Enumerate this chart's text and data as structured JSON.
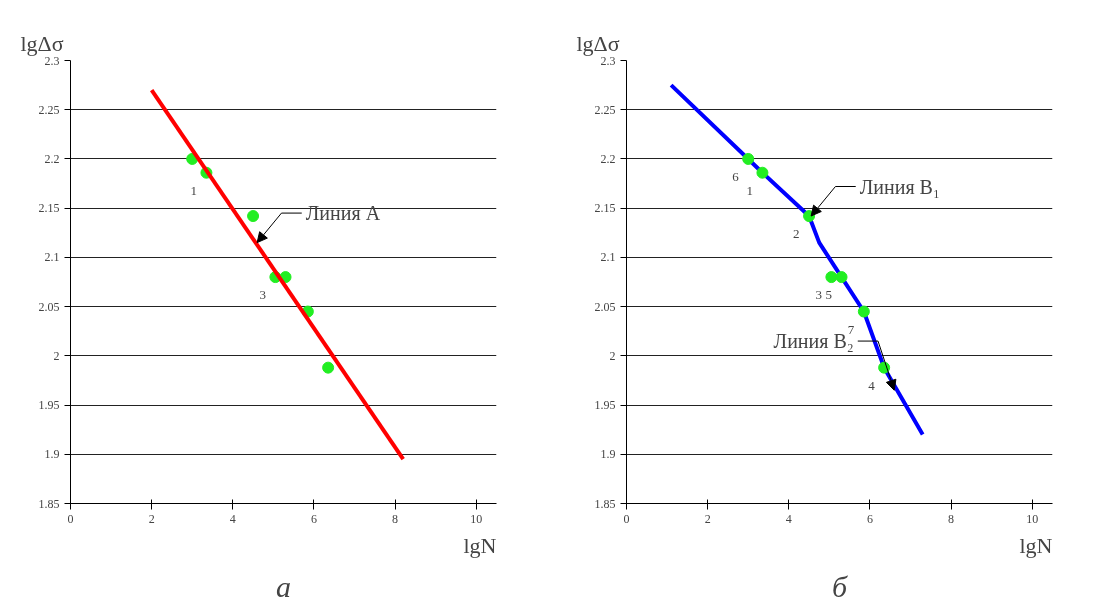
{
  "chart_data": [
    {
      "type": "scatter",
      "title": "а",
      "xlabel": "lgN",
      "ylabel": "lgΔσ",
      "xlim": [
        0,
        10.5
      ],
      "ylim": [
        1.85,
        2.3
      ],
      "xticks": [
        0,
        2,
        4,
        6,
        8,
        10
      ],
      "yticks": [
        1.85,
        1.9,
        1.95,
        2,
        2.05,
        2.1,
        2.15,
        2.2,
        2.25,
        2.3
      ],
      "grid": "y",
      "series": [
        {
          "color": "#22ee22",
          "x": [
            3.0,
            3.35,
            4.5,
            5.05,
            5.3,
            5.85,
            6.35
          ],
          "values": [
            2.2,
            2.186,
            2.142,
            2.08,
            2.08,
            2.045,
            1.988
          ]
        },
        {
          "type": "line",
          "color": "#ff0000",
          "x": [
            2.0,
            8.2
          ],
          "values": [
            2.27,
            1.895
          ]
        }
      ],
      "annotations": [
        {
          "text": "1",
          "x": 3.35,
          "y": 2.186
        },
        {
          "text": "3",
          "x": 5.05,
          "y": 2.08
        },
        {
          "text": "Линия A",
          "x": 4.6,
          "y": 2.115
        }
      ]
    },
    {
      "type": "scatter",
      "title": "б",
      "xlabel": "lgN",
      "ylabel": "lgΔσ",
      "xlim": [
        0,
        10.5
      ],
      "ylim": [
        1.85,
        2.3
      ],
      "xticks": [
        0,
        2,
        4,
        6,
        8,
        10
      ],
      "yticks": [
        1.85,
        1.9,
        1.95,
        2,
        2.05,
        2.1,
        2.15,
        2.2,
        2.25,
        2.3
      ],
      "grid": "y",
      "series": [
        {
          "type": "line",
          "color": "#0000ff",
          "x": [
            1.1,
            3.0,
            3.35,
            4.5,
            4.75,
            5.3,
            5.85,
            6.35,
            7.3
          ],
          "values": [
            2.275,
            2.2,
            2.186,
            2.142,
            2.115,
            2.08,
            2.045,
            1.988,
            1.92
          ]
        },
        {
          "color": "#22ee22",
          "x": [
            3.0,
            3.35,
            4.5,
            5.05,
            5.3,
            5.85,
            6.35
          ],
          "values": [
            2.2,
            2.186,
            2.142,
            2.08,
            2.08,
            2.045,
            1.988
          ]
        }
      ],
      "annotations": [
        {
          "text": "6",
          "x": 3.0,
          "y": 2.2
        },
        {
          "text": "1",
          "x": 3.35,
          "y": 2.186
        },
        {
          "text": "2",
          "x": 4.5,
          "y": 2.142
        },
        {
          "text": "3",
          "x": 5.05,
          "y": 2.08
        },
        {
          "text": "5",
          "x": 5.3,
          "y": 2.08
        },
        {
          "text": "7",
          "x": 5.85,
          "y": 2.045
        },
        {
          "text": "4",
          "x": 6.35,
          "y": 1.988
        },
        {
          "text": "Линия B₁",
          "x": 4.55,
          "y": 2.142
        },
        {
          "text": "Линия B₂",
          "x": 6.6,
          "y": 1.965
        }
      ]
    }
  ]
}
